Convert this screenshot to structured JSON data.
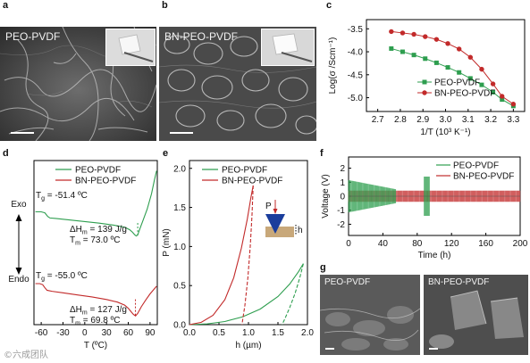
{
  "panels": {
    "a": {
      "label": "a",
      "caption": "PEO-PVDF"
    },
    "b": {
      "label": "b",
      "caption": "BN-PEO-PVDF"
    },
    "c": {
      "label": "c"
    },
    "d": {
      "label": "d",
      "exo": "Exo",
      "endo": "Endo"
    },
    "e": {
      "label": "e",
      "inset_p": "P",
      "inset_h": "h"
    },
    "f": {
      "label": "f"
    },
    "g": {
      "label": "g",
      "caption_left": "PEO-PVDF",
      "caption_right": "BN-PEO-PVDF"
    }
  },
  "watermark": "©六成团队",
  "colors": {
    "green": "#2e9e4f",
    "red": "#c22a2a",
    "accent_triangle": "#1a3d9c",
    "substrate": "#c8a87a"
  },
  "chart_data": [
    {
      "id": "c",
      "type": "line",
      "xlabel": "1/T (10³ K⁻¹)",
      "ylabel": "Log(σ /Scm⁻¹)",
      "xlim": [
        2.65,
        3.35
      ],
      "ylim": [
        -5.3,
        -3.3
      ],
      "xticks": [
        2.7,
        2.8,
        2.9,
        3.0,
        3.1,
        3.2,
        3.3
      ],
      "xtick_labels": [
        "2.7",
        "2.8",
        "2.9",
        "3.0",
        "3.1",
        "3.2",
        "3.3"
      ],
      "yticks": [
        -3.5,
        -4.0,
        -4.5,
        -5.0
      ],
      "ytick_labels": [
        "-3.5",
        "-4.0",
        "-4.5",
        "-5.0"
      ],
      "legend_position": "bottom-right",
      "series": [
        {
          "name": "PEO-PVDF",
          "color": "#2e9e4f",
          "marker": "square",
          "x": [
            2.76,
            2.81,
            2.86,
            2.91,
            2.96,
            3.01,
            3.06,
            3.11,
            3.16,
            3.21,
            3.25,
            3.3
          ],
          "y": [
            -3.93,
            -4.0,
            -4.07,
            -4.15,
            -4.24,
            -4.34,
            -4.45,
            -4.58,
            -4.72,
            -4.88,
            -5.04,
            -5.18
          ]
        },
        {
          "name": "BN-PEO-PVDF",
          "color": "#c22a2a",
          "marker": "circle",
          "x": [
            2.76,
            2.81,
            2.86,
            2.91,
            2.96,
            3.01,
            3.06,
            3.11,
            3.16,
            3.21,
            3.25,
            3.3
          ],
          "y": [
            -3.56,
            -3.59,
            -3.62,
            -3.67,
            -3.73,
            -3.82,
            -3.94,
            -4.12,
            -4.38,
            -4.7,
            -4.97,
            -5.14
          ]
        }
      ]
    },
    {
      "id": "d",
      "type": "line",
      "xlabel": "T (ºC)",
      "ylabel": "",
      "xlim": [
        -70,
        100
      ],
      "xticks": [
        -60,
        -30,
        0,
        30,
        60,
        90
      ],
      "xtick_labels": [
        "-60",
        "-30",
        "0",
        "30",
        "60",
        "90"
      ],
      "legend_position": "top-center",
      "series": [
        {
          "name": "PEO-PVDF",
          "color": "#2e9e4f",
          "x": [
            -68,
            -60,
            -55,
            -51,
            -48,
            -40,
            -20,
            0,
            20,
            40,
            55,
            62,
            66,
            69,
            71,
            73,
            76,
            80,
            86,
            92,
            96,
            99
          ],
          "y": [
            0.0,
            0.0,
            -0.02,
            -0.09,
            -0.12,
            -0.13,
            -0.16,
            -0.19,
            -0.22,
            -0.26,
            -0.3,
            -0.35,
            -0.4,
            -0.45,
            -0.47,
            -0.45,
            -0.33,
            -0.18,
            0.05,
            0.35,
            0.62,
            0.8
          ]
        },
        {
          "name": "BN-PEO-PVDF",
          "color": "#c22a2a",
          "x": [
            -68,
            -62,
            -58,
            -55,
            -52,
            -45,
            -30,
            -10,
            10,
            30,
            45,
            55,
            60,
            64,
            67,
            70,
            73,
            78,
            84,
            90,
            96,
            99
          ],
          "y": [
            -1.4,
            -1.4,
            -1.42,
            -1.48,
            -1.53,
            -1.55,
            -1.58,
            -1.62,
            -1.66,
            -1.71,
            -1.76,
            -1.82,
            -1.88,
            -1.95,
            -2.0,
            -2.03,
            -1.98,
            -1.85,
            -1.72,
            -1.6,
            -1.5,
            -1.45
          ]
        }
      ],
      "annotations": [
        {
          "text_parts": [
            "T",
            "g",
            " = -51.4 ºC"
          ],
          "series": "PEO-PVDF"
        },
        {
          "text_parts": [
            "ΔH",
            "m",
            " = 139 J/g"
          ],
          "series": "PEO-PVDF"
        },
        {
          "text_parts": [
            "T",
            "m",
            " = 73.0 ºC"
          ],
          "series": "PEO-PVDF"
        },
        {
          "text_parts": [
            "T",
            "g",
            " = -55.0 ºC"
          ],
          "series": "BN-PEO-PVDF"
        },
        {
          "text_parts": [
            "ΔH",
            "m",
            " = 127 J/g"
          ],
          "series": "BN-PEO-PVDF"
        },
        {
          "text_parts": [
            "T",
            "m",
            " = 69.8 ºC"
          ],
          "series": "BN-PEO-PVDF"
        }
      ]
    },
    {
      "id": "e",
      "type": "line",
      "xlabel": "h (µm)",
      "ylabel": "P (mN)",
      "xlim": [
        0,
        2.0
      ],
      "ylim": [
        0,
        2.1
      ],
      "xticks": [
        0.0,
        0.5,
        1.0,
        1.5,
        2.0
      ],
      "xtick_labels": [
        "0.0",
        "0.5",
        "1.0",
        "1.5",
        "2.0"
      ],
      "yticks": [
        0.0,
        0.5,
        1.0,
        1.5,
        2.0
      ],
      "ytick_labels": [
        "0.0",
        "0.5",
        "1.0",
        "1.5",
        "2.0"
      ],
      "legend_position": "top-center",
      "series": [
        {
          "name": "PEO-PVDF",
          "color": "#2e9e4f",
          "loading": {
            "x": [
              0.0,
              0.3,
              0.6,
              0.9,
              1.2,
              1.5,
              1.7,
              1.85,
              1.93
            ],
            "y": [
              0.0,
              0.01,
              0.04,
              0.1,
              0.2,
              0.36,
              0.52,
              0.68,
              0.78
            ]
          },
          "unloading": {
            "x": [
              1.93,
              1.87,
              1.79,
              1.7,
              1.62,
              1.57
            ],
            "y": [
              0.78,
              0.6,
              0.4,
              0.22,
              0.08,
              0.0
            ]
          }
        },
        {
          "name": "BN-PEO-PVDF",
          "color": "#c22a2a",
          "loading": {
            "x": [
              0.0,
              0.2,
              0.4,
              0.6,
              0.75,
              0.88,
              0.98,
              1.04,
              1.08
            ],
            "y": [
              0.0,
              0.03,
              0.12,
              0.32,
              0.6,
              0.98,
              1.35,
              1.62,
              1.78
            ]
          },
          "unloading": {
            "x": [
              1.08,
              1.06,
              1.03,
              0.99,
              0.94,
              0.89
            ],
            "y": [
              1.78,
              1.4,
              1.0,
              0.6,
              0.25,
              0.0
            ]
          }
        }
      ]
    },
    {
      "id": "f",
      "type": "line",
      "xlabel": "Time (h)",
      "ylabel": "Voltage (V)",
      "xlim": [
        0,
        200
      ],
      "ylim": [
        -2.8,
        2.8
      ],
      "xticks": [
        0,
        40,
        80,
        120,
        160,
        200
      ],
      "xtick_labels": [
        "0",
        "40",
        "80",
        "120",
        "160",
        "200"
      ],
      "yticks": [
        -2,
        -1,
        0,
        1,
        2
      ],
      "ytick_labels": [
        "-2",
        "-1",
        "0",
        "1",
        "2"
      ],
      "legend_position": "top-right",
      "series": [
        {
          "name": "PEO-PVDF",
          "color": "#2e9e4f",
          "segments": [
            {
              "t_start": 0,
              "t_end": 55,
              "amplitude": [
                1.15,
                0.5
              ]
            },
            {
              "t_start": 88,
              "t_end": 95,
              "amplitude": [
                1.4,
                1.4
              ]
            }
          ]
        },
        {
          "name": "BN-PEO-PVDF",
          "color": "#c22a2a",
          "segments": [
            {
              "t_start": 0,
              "t_end": 200,
              "amplitude": [
                0.4,
                0.4
              ]
            }
          ]
        }
      ]
    }
  ]
}
